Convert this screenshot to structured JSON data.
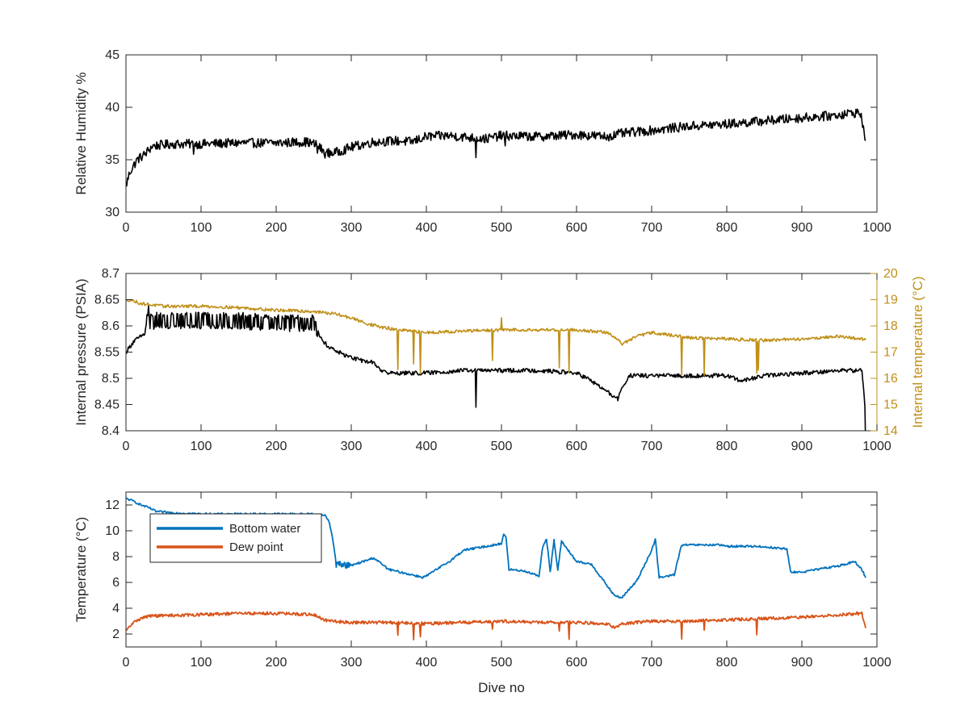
{
  "chart_data": [
    {
      "type": "line",
      "xlabel": "",
      "ylabel": "Relative Humidity %",
      "xlim": [
        0,
        1000
      ],
      "ylim": [
        30,
        45
      ],
      "xticks": [
        0,
        100,
        200,
        300,
        400,
        500,
        600,
        700,
        800,
        900,
        1000
      ],
      "yticks": [
        30,
        35,
        40,
        45
      ],
      "grid": false,
      "colors": {
        "rh": "#000000"
      },
      "series": [
        {
          "key": "rh",
          "noise": 0.45,
          "x": [
            0,
            5,
            15,
            25,
            35,
            60,
            100,
            150,
            200,
            240,
            255,
            265,
            280,
            300,
            330,
            360,
            380,
            400,
            430,
            460,
            480,
            500,
            550,
            600,
            640,
            660,
            700,
            750,
            800,
            850,
            900,
            940,
            960,
            975,
            980,
            985
          ],
          "y": [
            32.5,
            33.8,
            35.0,
            35.5,
            36.3,
            36.5,
            36.5,
            36.6,
            36.6,
            36.7,
            36.4,
            35.6,
            35.7,
            36.2,
            36.7,
            36.8,
            36.7,
            37.2,
            37.3,
            37.1,
            37.0,
            37.3,
            37.2,
            37.4,
            37.2,
            37.5,
            37.8,
            38.2,
            38.4,
            38.7,
            39.0,
            39.2,
            39.4,
            39.5,
            39.0,
            36.5
          ]
        }
      ]
    },
    {
      "type": "line",
      "xlabel": "",
      "ylabel": "Internal pressure (PSIA)",
      "ylabel_right": "Internal temperature (°C)",
      "xlim": [
        0,
        1000
      ],
      "ylim": [
        8.4,
        8.7
      ],
      "ylim_right": [
        14,
        20
      ],
      "xticks": [
        0,
        100,
        200,
        300,
        400,
        500,
        600,
        700,
        800,
        900,
        1000
      ],
      "yticks": [
        8.4,
        8.45,
        8.5,
        8.55,
        8.6,
        8.65,
        8.7
      ],
      "yticks_right": [
        14,
        15,
        16,
        17,
        18,
        19,
        20
      ],
      "grid": false,
      "colors": {
        "pressure": "#000000",
        "temperature": "#c09018",
        "right_axis": "#c09018"
      },
      "series": [
        {
          "key": "pressure",
          "axis": "left",
          "noise": 0.004,
          "x": [
            0,
            5,
            10,
            20,
            25,
            28,
            30,
            40,
            100,
            150,
            200,
            250,
            255,
            260,
            270,
            290,
            310,
            330,
            340,
            350,
            380,
            400,
            450,
            500,
            550,
            600,
            620,
            640,
            655,
            660,
            670,
            700,
            750,
            800,
            820,
            850,
            900,
            950,
            980,
            985
          ],
          "y": [
            8.55,
            8.56,
            8.57,
            8.58,
            8.585,
            8.61,
            8.605,
            8.61,
            8.61,
            8.61,
            8.605,
            8.605,
            8.59,
            8.575,
            8.56,
            8.545,
            8.535,
            8.53,
            8.515,
            8.51,
            8.51,
            8.51,
            8.515,
            8.515,
            8.515,
            8.51,
            8.495,
            8.475,
            8.46,
            8.48,
            8.505,
            8.505,
            8.505,
            8.505,
            8.495,
            8.505,
            8.51,
            8.515,
            8.515,
            8.43
          ]
        },
        {
          "key": "temperature",
          "axis": "right",
          "noise": 0.06,
          "x": [
            0,
            5,
            20,
            50,
            100,
            150,
            200,
            250,
            280,
            300,
            320,
            340,
            360,
            400,
            450,
            500,
            550,
            600,
            620,
            640,
            655,
            660,
            680,
            700,
            750,
            800,
            850,
            900,
            950,
            980,
            985
          ],
          "y": [
            18.95,
            19.0,
            18.85,
            18.75,
            18.75,
            18.7,
            18.6,
            18.55,
            18.45,
            18.3,
            18.1,
            17.95,
            17.85,
            17.75,
            17.8,
            17.85,
            17.85,
            17.85,
            17.8,
            17.75,
            17.5,
            17.3,
            17.6,
            17.75,
            17.55,
            17.5,
            17.45,
            17.5,
            17.6,
            17.5,
            17.5
          ]
        }
      ]
    },
    {
      "type": "line",
      "xlabel": "Dive no",
      "ylabel": "Temperature (°C)",
      "xlim": [
        0,
        1000
      ],
      "ylim": [
        1,
        13
      ],
      "xticks": [
        0,
        100,
        200,
        300,
        400,
        500,
        600,
        700,
        800,
        900,
        1000
      ],
      "yticks": [
        2,
        4,
        6,
        8,
        10,
        12
      ],
      "grid": false,
      "legend": "top-left",
      "colors": {
        "bottom": "#0072bd",
        "dew": "#d95319"
      },
      "series": [
        {
          "key": "bottom",
          "name": "Bottom water",
          "noise": 0.08,
          "x": [
            0,
            10,
            20,
            30,
            40,
            60,
            100,
            150,
            200,
            250,
            265,
            270,
            275,
            280,
            300,
            330,
            350,
            380,
            395,
            400,
            430,
            450,
            480,
            500,
            503,
            506,
            510,
            530,
            550,
            555,
            560,
            565,
            570,
            575,
            580,
            600,
            620,
            640,
            650,
            660,
            680,
            700,
            705,
            710,
            715,
            730,
            740,
            760,
            790,
            800,
            840,
            880,
            885,
            900,
            950,
            970,
            980,
            985
          ],
          "y": [
            12.5,
            12.3,
            12.0,
            11.8,
            11.5,
            11.4,
            11.3,
            11.3,
            11.3,
            11.3,
            11.2,
            10.8,
            9.5,
            7.4,
            7.3,
            7.9,
            7.0,
            6.6,
            6.4,
            6.5,
            7.6,
            8.5,
            8.8,
            9.0,
            9.8,
            9.5,
            7.0,
            6.9,
            6.5,
            8.8,
            9.4,
            6.8,
            9.3,
            6.9,
            9.2,
            7.6,
            7.4,
            5.8,
            5.0,
            4.8,
            6.1,
            8.5,
            9.3,
            6.4,
            6.4,
            6.6,
            8.9,
            8.9,
            8.9,
            8.8,
            8.8,
            8.6,
            6.8,
            6.8,
            7.3,
            7.6,
            7.0,
            6.4
          ]
        },
        {
          "key": "dew",
          "name": "Dew point",
          "noise": 0.12,
          "x": [
            0,
            5,
            15,
            30,
            100,
            150,
            200,
            250,
            260,
            270,
            300,
            350,
            400,
            450,
            500,
            550,
            600,
            640,
            650,
            660,
            700,
            750,
            800,
            850,
            900,
            950,
            980,
            985
          ],
          "y": [
            2.2,
            2.6,
            3.1,
            3.4,
            3.5,
            3.6,
            3.6,
            3.5,
            3.2,
            3.0,
            2.9,
            2.9,
            2.8,
            2.9,
            3.0,
            2.9,
            2.9,
            2.8,
            2.5,
            2.8,
            3.0,
            3.0,
            3.1,
            3.2,
            3.3,
            3.5,
            3.6,
            2.5
          ]
        }
      ]
    }
  ]
}
